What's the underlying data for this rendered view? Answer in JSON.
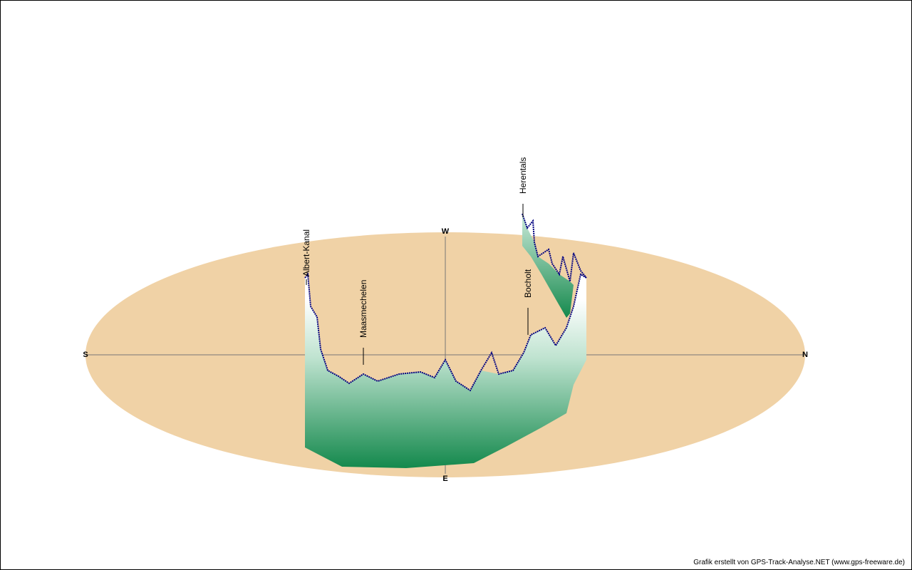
{
  "compass": {
    "south": "S",
    "west": "W",
    "north": "N",
    "east": "E"
  },
  "places": [
    "Albert-Kanal",
    "Maasmechelen",
    "Bocholt",
    "Herentals"
  ],
  "footer": "Grafik erstellt von GPS-Track-Analyse.NET (www.gps-freeware.de)"
}
